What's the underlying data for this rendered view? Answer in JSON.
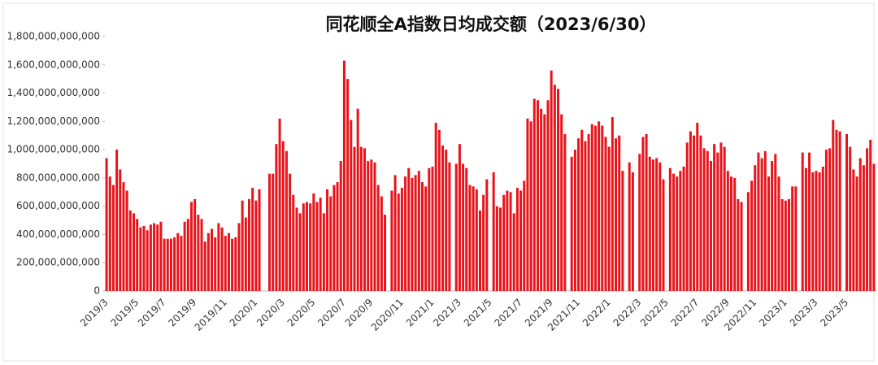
{
  "chart_data": {
    "type": "bar",
    "title": "同花顺全A指数日均成交额（2023/6/30）",
    "color": "#e8141b",
    "ylim": [
      0,
      1800000000000
    ],
    "yticks": [
      {
        "value": 0,
        "label": "0"
      },
      {
        "value": 200000000000,
        "label": "200,000,000,000"
      },
      {
        "value": 400000000000,
        "label": "400,000,000,000"
      },
      {
        "value": 600000000000,
        "label": "600,000,000,000"
      },
      {
        "value": 800000000000,
        "label": "800,000,000,000"
      },
      {
        "value": 1000000000000,
        "label": "1,000,000,000,000"
      },
      {
        "value": 1200000000000,
        "label": "1,200,000,000,000"
      },
      {
        "value": 1400000000000,
        "label": "1,400,000,000,000"
      },
      {
        "value": 1600000000000,
        "label": "1,600,000,000,000"
      },
      {
        "value": 1800000000000,
        "label": "1,800,000,000,000"
      }
    ],
    "categories": [
      "2019/3",
      null,
      null,
      null,
      null,
      null,
      null,
      null,
      null,
      "2019/5",
      null,
      null,
      null,
      null,
      null,
      null,
      null,
      "2019/7",
      null,
      null,
      null,
      null,
      null,
      null,
      null,
      null,
      "2019/9",
      null,
      null,
      null,
      null,
      null,
      null,
      null,
      null,
      "2019/11",
      null,
      null,
      null,
      null,
      null,
      null,
      null,
      null,
      "2020/1",
      null,
      null,
      null,
      null,
      null,
      null,
      null,
      "2020/3",
      null,
      null,
      null,
      null,
      null,
      null,
      null,
      null,
      "2020/5",
      null,
      null,
      null,
      null,
      null,
      null,
      null,
      null,
      "2020/7",
      null,
      null,
      null,
      null,
      null,
      null,
      null,
      "2020/9",
      null,
      null,
      null,
      null,
      null,
      null,
      null,
      null,
      "2020/11",
      null,
      null,
      null,
      null,
      null,
      null,
      null,
      null,
      "2021/1",
      null,
      null,
      null,
      null,
      null,
      null,
      null,
      "2021/3",
      null,
      null,
      null,
      null,
      null,
      null,
      null,
      null,
      "2021/5",
      null,
      null,
      null,
      null,
      null,
      null,
      null,
      null,
      "2021/7",
      null,
      null,
      null,
      null,
      null,
      null,
      null,
      null,
      "2021/9",
      null,
      null,
      null,
      null,
      null,
      null,
      null,
      "2021/11",
      null,
      null,
      null,
      null,
      null,
      null,
      null,
      null,
      "2022/1",
      null,
      null,
      null,
      null,
      null,
      null,
      null,
      null,
      "2022/3",
      null,
      null,
      null,
      null,
      null,
      null,
      null,
      "2022/5",
      null,
      null,
      null,
      null,
      null,
      null,
      null,
      null,
      "2022/7",
      null,
      null,
      null,
      null,
      null,
      null,
      null,
      null,
      "2022/9",
      null,
      null,
      null,
      null,
      null,
      null,
      null,
      "2022/11",
      null,
      null,
      null,
      null,
      null,
      null,
      null,
      null,
      "2023/1",
      null,
      null,
      null,
      null,
      null,
      null,
      null,
      null,
      "2023/3",
      null,
      null,
      null,
      null,
      null,
      null,
      null,
      null,
      "2023/5",
      null,
      null,
      null,
      null,
      null,
      null,
      null,
      null
    ],
    "values": [
      940000000000.0,
      810000000000.0,
      750000000000.0,
      1000000000000.0,
      860000000000.0,
      770000000000.0,
      710000000000.0,
      570000000000.0,
      550000000000.0,
      510000000000.0,
      450000000000.0,
      460000000000.0,
      430000000000.0,
      470000000000.0,
      480000000000.0,
      470000000000.0,
      490000000000.0,
      370000000000.0,
      370000000000.0,
      370000000000.0,
      380000000000.0,
      410000000000.0,
      390000000000.0,
      490000000000.0,
      510000000000.0,
      630000000000.0,
      650000000000.0,
      540000000000.0,
      510000000000.0,
      350000000000.0,
      410000000000.0,
      440000000000.0,
      380000000000.0,
      480000000000.0,
      450000000000.0,
      390000000000.0,
      410000000000.0,
      370000000000.0,
      380000000000.0,
      480000000000.0,
      640000000000.0,
      520000000000.0,
      650000000000.0,
      730000000000.0,
      640000000000.0,
      720000000000.0,
      null,
      null,
      830000000000.0,
      830000000000.0,
      1040000000000.0,
      1220000000000.0,
      1060000000000.0,
      990000000000.0,
      830000000000.0,
      680000000000.0,
      590000000000.0,
      550000000000.0,
      620000000000.0,
      630000000000.0,
      620000000000.0,
      690000000000.0,
      630000000000.0,
      660000000000.0,
      550000000000.0,
      720000000000.0,
      670000000000.0,
      750000000000.0,
      770000000000.0,
      920000000000.0,
      1630000000000.0,
      1500000000000.0,
      1210000000000.0,
      1020000000000.0,
      1290000000000.0,
      1020000000000.0,
      1010000000000.0,
      920000000000.0,
      930000000000.0,
      910000000000.0,
      750000000000.0,
      670000000000.0,
      540000000000.0,
      null,
      710000000000.0,
      820000000000.0,
      690000000000.0,
      730000000000.0,
      810000000000.0,
      870000000000.0,
      800000000000.0,
      820000000000.0,
      850000000000.0,
      770000000000.0,
      740000000000.0,
      870000000000.0,
      880000000000.0,
      1190000000000.0,
      1140000000000.0,
      1030000000000.0,
      1000000000000.0,
      910000000000.0,
      null,
      900000000000.0,
      1040000000000.0,
      900000000000.0,
      870000000000.0,
      750000000000.0,
      740000000000.0,
      720000000000.0,
      570000000000.0,
      680000000000.0,
      790000000000.0,
      null,
      840000000000.0,
      600000000000.0,
      590000000000.0,
      680000000000.0,
      710000000000.0,
      700000000000.0,
      550000000000.0,
      730000000000.0,
      710000000000.0,
      780000000000.0,
      1220000000000.0,
      1200000000000.0,
      1360000000000.0,
      1350000000000.0,
      1290000000000.0,
      1250000000000.0,
      1350000000000.0,
      1560000000000.0,
      1460000000000.0,
      1430000000000.0,
      1250000000000.0,
      1110000000000.0,
      null,
      950000000000.0,
      1000000000000.0,
      1080000000000.0,
      1140000000000.0,
      1060000000000.0,
      1110000000000.0,
      1180000000000.0,
      1170000000000.0,
      1200000000000.0,
      1170000000000.0,
      1090000000000.0,
      1020000000000.0,
      1230000000000.0,
      1080000000000.0,
      1100000000000.0,
      850000000000.0,
      null,
      910000000000.0,
      840000000000.0,
      null,
      970000000000.0,
      1090000000000.0,
      1110000000000.0,
      950000000000.0,
      930000000000.0,
      940000000000.0,
      910000000000.0,
      790000000000.0,
      null,
      870000000000.0,
      830000000000.0,
      810000000000.0,
      850000000000.0,
      880000000000.0,
      1050000000000.0,
      1130000000000.0,
      1100000000000.0,
      1190000000000.0,
      1100000000000.0,
      1010000000000.0,
      990000000000.0,
      920000000000.0,
      1040000000000.0,
      980000000000.0,
      1050000000000.0,
      1020000000000.0,
      850000000000.0,
      810000000000.0,
      800000000000.0,
      650000000000.0,
      630000000000.0,
      null,
      700000000000.0,
      780000000000.0,
      890000000000.0,
      980000000000.0,
      940000000000.0,
      990000000000.0,
      810000000000.0,
      920000000000.0,
      970000000000.0,
      810000000000.0,
      650000000000.0,
      640000000000.0,
      650000000000.0,
      740000000000.0,
      740000000000.0,
      null,
      980000000000.0,
      870000000000.0,
      980000000000.0,
      840000000000.0,
      850000000000.0,
      840000000000.0,
      880000000000.0,
      1000000000000.0,
      1010000000000.0,
      1210000000000.0,
      1140000000000.0,
      1130000000000.0,
      null,
      1110000000000.0,
      1020000000000.0,
      860000000000.0,
      810000000000.0,
      940000000000.0,
      890000000000.0,
      1010000000000.0,
      1070000000000.0,
      900000000000.0
    ]
  }
}
